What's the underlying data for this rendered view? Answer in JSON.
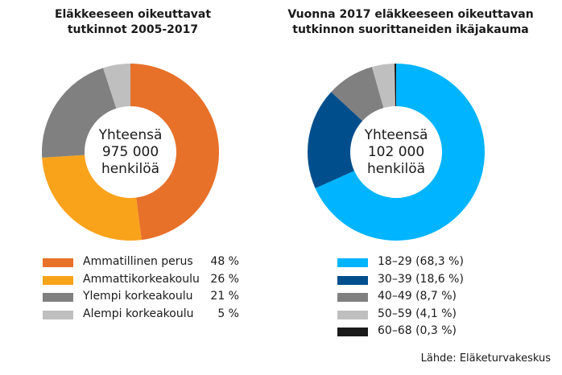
{
  "chart_data": [
    {
      "type": "donut",
      "title": "Eläkkeeseen oikeuttavat\ntutkinnot 2005-2017",
      "center_label": "Yhteensä\n975 000\nhenkilöä",
      "categories": [
        "Ammatillinen perus",
        "Ammattikorkeakoulu",
        "Ylempi korkeakoulu",
        "Alempi korkeakoulu"
      ],
      "values": [
        48,
        26,
        21,
        5
      ],
      "value_labels": [
        "48 %",
        "26 %",
        "21 %",
        "5 %"
      ],
      "colors": [
        "#e8712a",
        "#f9a31b",
        "#808080",
        "#bfbfbf"
      ],
      "legend": "bottom"
    },
    {
      "type": "donut",
      "title": "Vuonna 2017 eläkkeeseen oikeuttavan\ntutkinnon suorittaneiden ikäjakauma",
      "center_label": "Yhteensä\n102 000\nhenkilöä",
      "categories": [
        "18–29 (68,3 %)",
        "30–39 (18,6 %)",
        "40–49 (8,7 %)",
        "50–59 (4,1 %)",
        "60–68 (0,3 %)"
      ],
      "values": [
        68.3,
        18.6,
        8.7,
        4.1,
        0.3
      ],
      "colors": [
        "#00b4ff",
        "#004f8c",
        "#808080",
        "#bfbfbf",
        "#1a1a1a"
      ],
      "legend": "bottom"
    }
  ],
  "source": "Lähde: Eläketurvakeskus"
}
